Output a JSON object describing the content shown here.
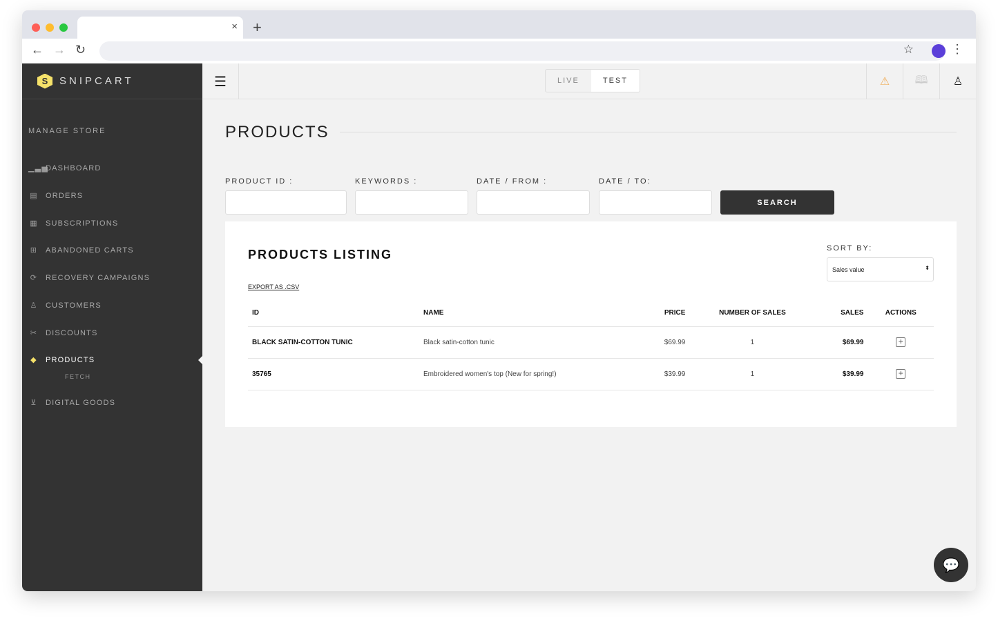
{
  "browser": {
    "close": "×",
    "new_tab": "+",
    "back": "←",
    "forward": "→",
    "reload": "↻",
    "star": "☆",
    "menu": "⋮"
  },
  "brand": {
    "name": "SNIPCART",
    "logo_letter": "S",
    "accent": "#f6e26a"
  },
  "sidebar": {
    "section": "MANAGE STORE",
    "items": [
      {
        "label": "DASHBOARD",
        "icon": "bar-chart-icon"
      },
      {
        "label": "ORDERS",
        "icon": "receipt-icon"
      },
      {
        "label": "SUBSCRIPTIONS",
        "icon": "calendar-icon"
      },
      {
        "label": "ABANDONED CARTS",
        "icon": "cart-icon"
      },
      {
        "label": "RECOVERY CAMPAIGNS",
        "icon": "refresh-icon"
      },
      {
        "label": "CUSTOMERS",
        "icon": "user-icon"
      },
      {
        "label": "DISCOUNTS",
        "icon": "scissors-icon"
      },
      {
        "label": "PRODUCTS",
        "icon": "tag-icon",
        "active": true
      },
      {
        "label": "DIGITAL GOODS",
        "icon": "download-icon"
      }
    ],
    "products_sub": "FETCH"
  },
  "header": {
    "modes": [
      "LIVE",
      "TEST"
    ],
    "active_mode": "TEST"
  },
  "page": {
    "title": "PRODUCTS",
    "filters": [
      {
        "label": "PRODUCT ID :",
        "value": ""
      },
      {
        "label": "KEYWORDS :",
        "value": ""
      },
      {
        "label": "DATE / FROM :",
        "value": ""
      },
      {
        "label": "DATE / TO:",
        "value": ""
      }
    ],
    "search_label": "SEARCH"
  },
  "listing": {
    "title": "PRODUCTS LISTING",
    "export": "EXPORT AS .CSV",
    "sort_label": "SORT BY:",
    "sort_value": "Sales value",
    "columns": [
      "ID",
      "NAME",
      "PRICE",
      "NUMBER OF SALES",
      "SALES",
      "ACTIONS"
    ],
    "rows": [
      {
        "id": "BLACK SATIN-COTTON TUNIC",
        "name": "Black satin-cotton tunic",
        "price": "$69.99",
        "count": "1",
        "sales": "$69.99"
      },
      {
        "id": "35765",
        "name": "Embroidered women's top (New for spring!)",
        "price": "$39.99",
        "count": "1",
        "sales": "$39.99"
      }
    ]
  }
}
